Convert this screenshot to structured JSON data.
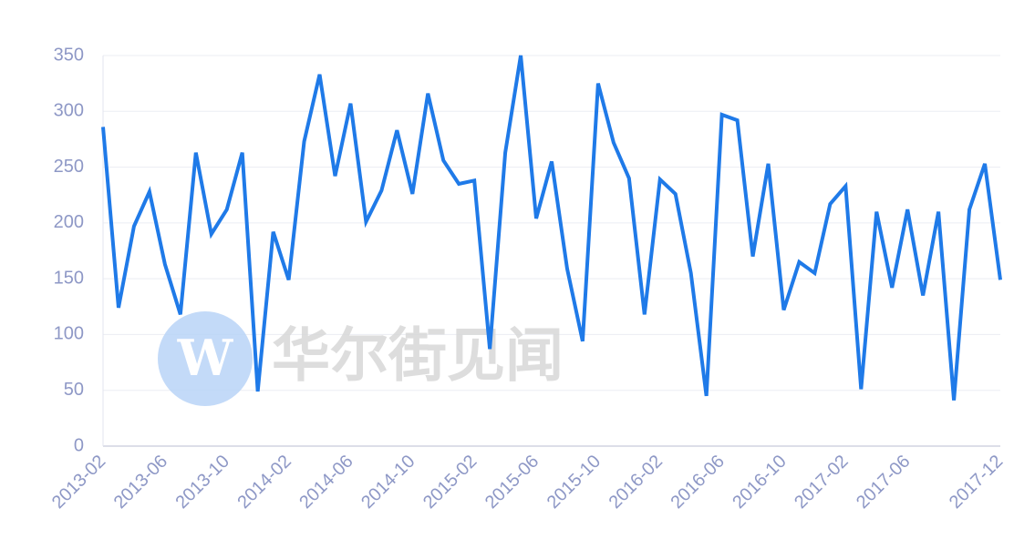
{
  "chart_data": {
    "type": "line",
    "watermark": "华尔街见闻",
    "categories": [
      "2013-02",
      null,
      null,
      null,
      "2013-06",
      null,
      null,
      null,
      "2013-10",
      null,
      null,
      null,
      "2014-02",
      null,
      null,
      null,
      "2014-06",
      null,
      null,
      null,
      "2014-10",
      null,
      null,
      null,
      "2015-02",
      null,
      null,
      null,
      "2015-06",
      null,
      null,
      null,
      "2015-10",
      null,
      null,
      null,
      "2016-02",
      null,
      null,
      null,
      "2016-06",
      null,
      null,
      null,
      "2016-10",
      null,
      null,
      null,
      "2017-02",
      null,
      null,
      null,
      "2017-06",
      null,
      null,
      null,
      null,
      null,
      "2017-12"
    ],
    "values": [
      286,
      124,
      197,
      228,
      163,
      118,
      263,
      190,
      212,
      263,
      49,
      192,
      149,
      273,
      333,
      242,
      307,
      201,
      229,
      283,
      226,
      316,
      256,
      235,
      238,
      87,
      263,
      350,
      204,
      255,
      159,
      94,
      325,
      272,
      240,
      118,
      239,
      226,
      155,
      45,
      297,
      292,
      170,
      253,
      122,
      165,
      155,
      217,
      233,
      51,
      210,
      142,
      212,
      135,
      210,
      41,
      212,
      253,
      149
    ],
    "color": "#1f7ae8",
    "ylim": [
      0,
      350
    ],
    "yticks": [
      0,
      50,
      100,
      150,
      200,
      250,
      300,
      350
    ],
    "grid": true
  }
}
